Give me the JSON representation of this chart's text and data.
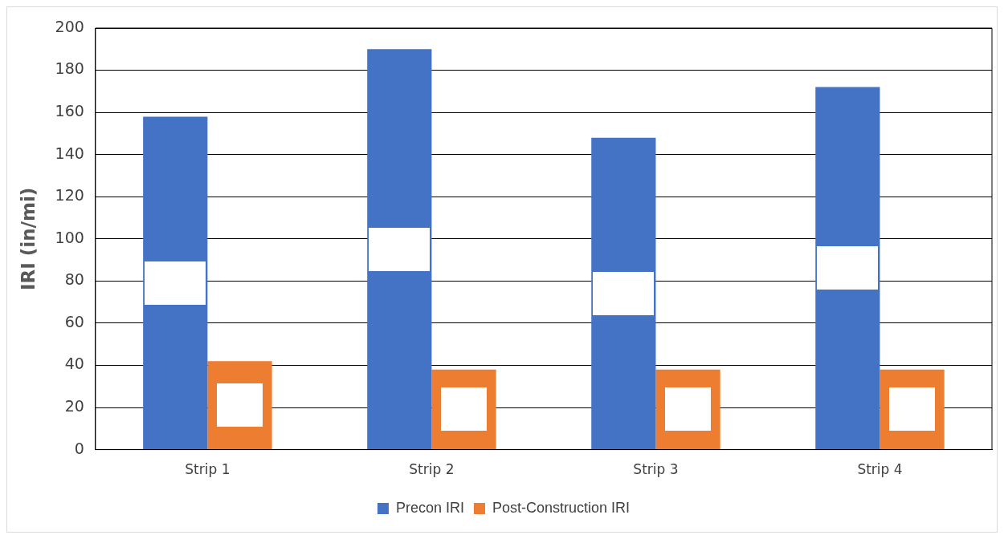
{
  "chart_data": {
    "type": "bar",
    "ylabel": "IRI (in/mi)",
    "categories": [
      "Strip 1",
      "Strip 2",
      "Strip 3",
      "Strip 4"
    ],
    "series": [
      {
        "name": "Precon IRI",
        "color": "#4472c4",
        "values": [
          158,
          190,
          148,
          172
        ]
      },
      {
        "name": "Post-Construction IRI",
        "color": "#ed7d31",
        "values": [
          42,
          38,
          38,
          38
        ]
      }
    ],
    "ylim": [
      0,
      200
    ],
    "yticks": [
      0,
      20,
      40,
      60,
      80,
      100,
      120,
      140,
      160,
      180,
      200
    ],
    "grid": "y",
    "legend": "bottom"
  }
}
